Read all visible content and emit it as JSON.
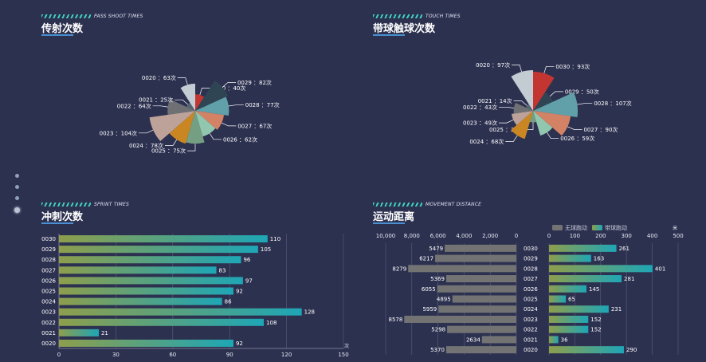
{
  "headers": {
    "pass": {
      "sub": "PASS SHOOT TIMES",
      "title": "传射次数"
    },
    "touch": {
      "sub": "TOUCH TIMES",
      "title": "带球触球次数"
    },
    "sprint": {
      "sub": "SPRINT TIMES",
      "title": "冲刺次数"
    },
    "movement": {
      "sub": "MOVEMENT DISTANCE",
      "title": "运动距离"
    }
  },
  "nav_dots": {
    "count": 4,
    "active_index": 3
  },
  "chart_data": [
    {
      "type": "pie",
      "subtype": "rose",
      "title": "传射次数",
      "categories": [
        "0030",
        "0029",
        "0028",
        "0027",
        "0026",
        "0025",
        "0024",
        "0023",
        "0022",
        "0021",
        "0020"
      ],
      "values": [
        40,
        82,
        77,
        67,
        62,
        75,
        78,
        104,
        64,
        25,
        63
      ],
      "unit": "次",
      "label_format": "{name} ：{value}次",
      "colors": [
        "#c23531",
        "#2f4554",
        "#61a0a8",
        "#d48265",
        "#91c7ae",
        "#749f83",
        "#ca8622",
        "#bda29a",
        "#6e7074",
        "#546570",
        "#c4ccd3"
      ]
    },
    {
      "type": "pie",
      "subtype": "rose",
      "title": "带球触球次数",
      "categories": [
        "0030",
        "0029",
        "0028",
        "0027",
        "0026",
        "0025",
        "0024",
        "0023",
        "0022",
        "0021",
        "0020"
      ],
      "values": [
        93,
        50,
        107,
        90,
        59,
        23,
        68,
        49,
        43,
        14,
        97
      ],
      "unit": "次",
      "label_format": "{name} ：{value}次",
      "colors": [
        "#c23531",
        "#2f4554",
        "#61a0a8",
        "#d48265",
        "#91c7ae",
        "#749f83",
        "#ca8622",
        "#bda29a",
        "#6e7074",
        "#546570",
        "#c4ccd3"
      ]
    },
    {
      "type": "bar",
      "orientation": "horizontal",
      "title": "冲刺次数",
      "categories": [
        "0030",
        "0029",
        "0028",
        "0027",
        "0026",
        "0025",
        "0024",
        "0023",
        "0022",
        "0021",
        "0020"
      ],
      "values": [
        110,
        105,
        96,
        83,
        97,
        92,
        86,
        128,
        108,
        21,
        92
      ],
      "xlim": [
        0,
        150
      ],
      "xticks": [
        0,
        30,
        60,
        90,
        120,
        150
      ],
      "xunit": "次",
      "grid": true,
      "gradient": [
        "#8e9e4c",
        "#1ea6b6"
      ]
    },
    {
      "type": "bar",
      "orientation": "horizontal",
      "subtype": "mirrored",
      "title": "运动距离",
      "categories": [
        "0030",
        "0029",
        "0028",
        "0027",
        "0026",
        "0025",
        "0024",
        "0023",
        "0022",
        "0021",
        "0020"
      ],
      "legend": [
        "无球跑动",
        "带球跑动"
      ],
      "legend_position": "top-right",
      "series": [
        {
          "name": "无球跑动",
          "values": [
            5479,
            6217,
            8279,
            5369,
            6055,
            4895,
            5959,
            8578,
            5298,
            2634,
            5370
          ],
          "color": "#737373",
          "xlim": [
            10000,
            0
          ],
          "xticks": [
            "10,000",
            "8,000",
            "6,000",
            "4,000",
            "2,000",
            "0"
          ]
        },
        {
          "name": "带球跑动",
          "values": [
            261,
            163,
            401,
            281,
            145,
            65,
            231,
            152,
            152,
            36,
            290
          ],
          "xlim": [
            0,
            500
          ],
          "xticks": [
            "0",
            "100",
            "200",
            "300",
            "400",
            "500"
          ],
          "xunit": "米",
          "gradient": [
            "#8e9e4c",
            "#1ea6b6"
          ]
        }
      ]
    }
  ]
}
